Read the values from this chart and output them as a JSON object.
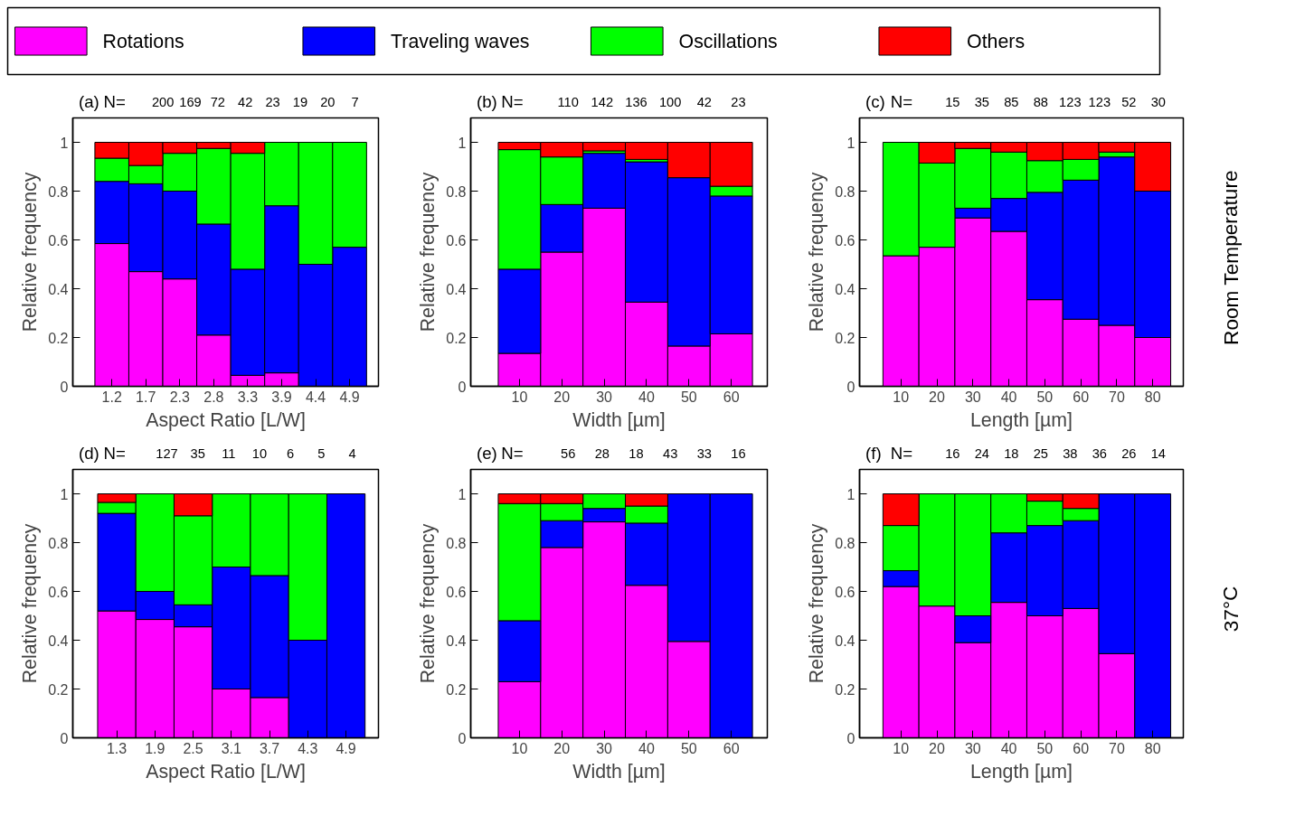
{
  "chart_data": [
    {
      "type": "bar",
      "title": "(a)",
      "xlabel": "Aspect Ratio [L/W]",
      "ylabel": "Relative frequency",
      "stacked": true,
      "legend": "top",
      "categories": [
        "1.2",
        "1.7",
        "2.3",
        "2.8",
        "3.3",
        "3.9",
        "4.4",
        "4.9"
      ],
      "ylim": [
        0,
        1.1
      ],
      "yticks": [
        0,
        0.2,
        0.4,
        0.6,
        0.8,
        1
      ],
      "series": [
        {
          "name": "Rotations",
          "color": "#ff00ff",
          "values": [
            0.585,
            0.47,
            0.44,
            0.21,
            0.045,
            0.055,
            0,
            0
          ]
        },
        {
          "name": "Traveling waves",
          "color": "#0000ff",
          "values": [
            0.255,
            0.36,
            0.36,
            0.455,
            0.435,
            0.685,
            0.5,
            0.57
          ]
        },
        {
          "name": "Oscillations",
          "color": "#00ff00",
          "values": [
            0.095,
            0.075,
            0.155,
            0.31,
            0.475,
            0.26,
            0.5,
            0.43
          ]
        },
        {
          "name": "Others",
          "color": "#ff0000",
          "values": [
            0.065,
            0.095,
            0.045,
            0.025,
            0.045,
            0,
            0,
            0
          ]
        }
      ],
      "annotations": [
        "N=",
        "200",
        "169",
        "72",
        "42",
        "23",
        "19",
        "20",
        "7"
      ]
    },
    {
      "type": "bar",
      "title": "(b)",
      "xlabel": "Width [µm]",
      "ylabel": "Relative frequency",
      "stacked": true,
      "categories": [
        "10",
        "20",
        "30",
        "40",
        "50",
        "60"
      ],
      "ylim": [
        0,
        1.1
      ],
      "yticks": [
        0,
        0.2,
        0.4,
        0.6,
        0.8,
        1
      ],
      "series": [
        {
          "color": "#ff00ff",
          "values": [
            0.135,
            0.55,
            0.73,
            0.345,
            0.165,
            0.215
          ]
        },
        {
          "color": "#0000ff",
          "values": [
            0.345,
            0.195,
            0.225,
            0.575,
            0.69,
            0.565
          ]
        },
        {
          "color": "#00ff00",
          "values": [
            0.49,
            0.195,
            0.01,
            0.01,
            0,
            0.04
          ]
        },
        {
          "color": "#ff0000",
          "values": [
            0.03,
            0.06,
            0.035,
            0.07,
            0.145,
            0.18
          ]
        }
      ],
      "annotations": [
        "N=",
        "110",
        "142",
        "136",
        "100",
        "42",
        "23"
      ]
    },
    {
      "type": "bar",
      "title": "(c)",
      "xlabel": "Length [µm]",
      "ylabel": "Relative frequency",
      "stacked": true,
      "categories": [
        "10",
        "20",
        "30",
        "40",
        "50",
        "60",
        "70",
        "80"
      ],
      "ylim": [
        0,
        1.1
      ],
      "yticks": [
        0,
        0.2,
        0.4,
        0.6,
        0.8,
        1
      ],
      "series": [
        {
          "color": "#ff00ff",
          "values": [
            0.535,
            0.57,
            0.69,
            0.635,
            0.355,
            0.275,
            0.25,
            0.2
          ]
        },
        {
          "color": "#0000ff",
          "values": [
            0,
            0,
            0.04,
            0.135,
            0.44,
            0.57,
            0.69,
            0.6
          ]
        },
        {
          "color": "#00ff00",
          "values": [
            0.465,
            0.345,
            0.245,
            0.19,
            0.13,
            0.085,
            0.02,
            0
          ]
        },
        {
          "color": "#ff0000",
          "values": [
            0,
            0.085,
            0.025,
            0.04,
            0.075,
            0.07,
            0.04,
            0.2
          ]
        }
      ],
      "annotations": [
        "N=",
        "15",
        "35",
        "85",
        "88",
        "123",
        "123",
        "52",
        "30",
        "Room Temperature"
      ]
    },
    {
      "type": "bar",
      "title": "(d)",
      "xlabel": "Aspect Ratio [L/W]",
      "ylabel": "Relative frequency",
      "stacked": true,
      "categories": [
        "1.3",
        "1.9",
        "2.5",
        "3.1",
        "3.7",
        "4.3",
        "4.9"
      ],
      "ylim": [
        0,
        1.1
      ],
      "yticks": [
        0,
        0.2,
        0.4,
        0.6,
        0.8,
        1
      ],
      "series": [
        {
          "color": "#ff00ff",
          "values": [
            0.52,
            0.485,
            0.455,
            0.2,
            0.165,
            0,
            0
          ]
        },
        {
          "color": "#0000ff",
          "values": [
            0.4,
            0.115,
            0.09,
            0.5,
            0.5,
            0.4,
            1
          ]
        },
        {
          "color": "#00ff00",
          "values": [
            0.045,
            0.4,
            0.365,
            0.3,
            0.335,
            0.6,
            0
          ]
        },
        {
          "color": "#ff0000",
          "values": [
            0.035,
            0,
            0.09,
            0,
            0,
            0,
            0
          ]
        }
      ],
      "annotations": [
        "N=",
        "127",
        "35",
        "11",
        "10",
        "6",
        "5",
        "4"
      ]
    },
    {
      "type": "bar",
      "title": "(e)",
      "xlabel": "Width [µm]",
      "ylabel": "Relative frequency",
      "stacked": true,
      "categories": [
        "10",
        "20",
        "30",
        "40",
        "50",
        "60"
      ],
      "ylim": [
        0,
        1.1
      ],
      "yticks": [
        0,
        0.2,
        0.4,
        0.6,
        0.8,
        1
      ],
      "series": [
        {
          "color": "#ff00ff",
          "values": [
            0.23,
            0.78,
            0.885,
            0.625,
            0.395,
            0
          ]
        },
        {
          "color": "#0000ff",
          "values": [
            0.25,
            0.11,
            0.055,
            0.255,
            0.605,
            1
          ]
        },
        {
          "color": "#00ff00",
          "values": [
            0.48,
            0.07,
            0.06,
            0.07,
            0,
            0
          ]
        },
        {
          "color": "#ff0000",
          "values": [
            0.04,
            0.04,
            0,
            0.05,
            0,
            0
          ]
        }
      ],
      "annotations": [
        "N=",
        "56",
        "28",
        "18",
        "43",
        "33",
        "16"
      ]
    },
    {
      "type": "bar",
      "title": "(f)",
      "xlabel": "Length [µm]",
      "ylabel": "Relative frequency",
      "stacked": true,
      "categories": [
        "10",
        "20",
        "30",
        "40",
        "50",
        "60",
        "70",
        "80"
      ],
      "ylim": [
        0,
        1.1
      ],
      "yticks": [
        0,
        0.2,
        0.4,
        0.6,
        0.8,
        1
      ],
      "series": [
        {
          "color": "#ff00ff",
          "values": [
            0.62,
            0.54,
            0.39,
            0.555,
            0.5,
            0.53,
            0.345,
            0
          ]
        },
        {
          "color": "#0000ff",
          "values": [
            0.065,
            0,
            0.11,
            0.285,
            0.37,
            0.36,
            0.655,
            1
          ]
        },
        {
          "color": "#00ff00",
          "values": [
            0.185,
            0.46,
            0.5,
            0.16,
            0.1,
            0.05,
            0,
            0
          ]
        },
        {
          "color": "#ff0000",
          "values": [
            0.13,
            0,
            0,
            0,
            0.03,
            0.06,
            0,
            0
          ]
        }
      ],
      "annotations": [
        "N=",
        "16",
        "24",
        "18",
        "25",
        "38",
        "36",
        "26",
        "14",
        "37°C"
      ]
    }
  ]
}
